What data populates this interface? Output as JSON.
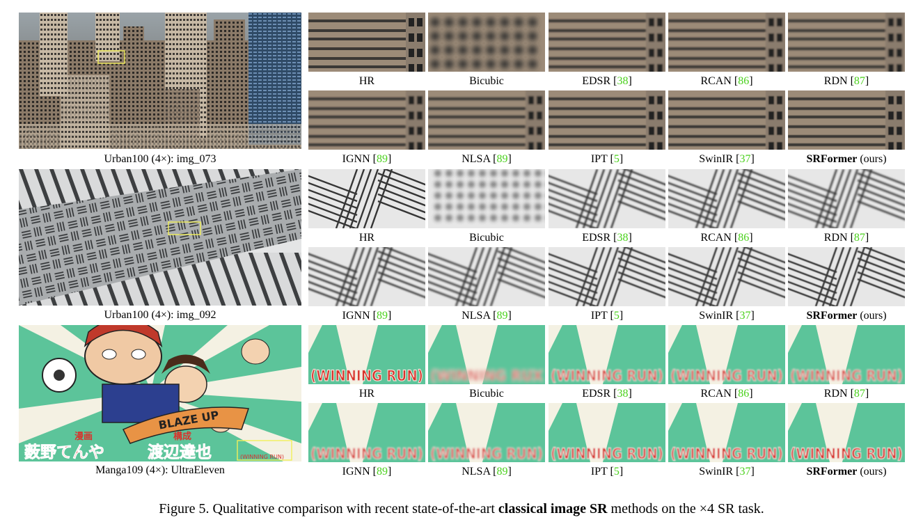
{
  "caption": {
    "prefix": "Figure 5. Qualitative comparison with recent state-of-the-art ",
    "bold": "classical image SR",
    "suffix": " methods on the ×4 SR task."
  },
  "groups": [
    {
      "source_label": "Urban100 (4×): img_073",
      "row1": [
        {
          "name": "HR",
          "ref": ""
        },
        {
          "name": "Bicubic",
          "ref": ""
        },
        {
          "name": "EDSR",
          "ref": "38"
        },
        {
          "name": "RCAN",
          "ref": "86"
        },
        {
          "name": "RDN",
          "ref": "87"
        }
      ],
      "row2": [
        {
          "name": "IGNN",
          "ref": "89"
        },
        {
          "name": "NLSA",
          "ref": "89"
        },
        {
          "name": "IPT",
          "ref": "5"
        },
        {
          "name": "SwinIR",
          "ref": "37"
        },
        {
          "name": "SRFormer",
          "ref": "",
          "suffix": "(ours)",
          "bold": true
        }
      ]
    },
    {
      "source_label": "Urban100 (4×): img_092",
      "row1": [
        {
          "name": "HR",
          "ref": ""
        },
        {
          "name": "Bicubic",
          "ref": ""
        },
        {
          "name": "EDSR",
          "ref": "38"
        },
        {
          "name": "RCAN",
          "ref": "86"
        },
        {
          "name": "RDN",
          "ref": "87"
        }
      ],
      "row2": [
        {
          "name": "IGNN",
          "ref": "89"
        },
        {
          "name": "NLSA",
          "ref": "89"
        },
        {
          "name": "IPT",
          "ref": "5"
        },
        {
          "name": "SwinIR",
          "ref": "37"
        },
        {
          "name": "SRFormer",
          "ref": "",
          "suffix": "(ours)",
          "bold": true
        }
      ]
    },
    {
      "source_label": "Manga109 (4×): UltraEleven",
      "manga_title_word": "BLAZE UP",
      "manga_credit_1": "漫画",
      "manga_credit_2": "構成",
      "manga_author_1": "薮野てんや",
      "manga_author_2": "渡辺達也",
      "manga_tag": "(WINNING RUN)",
      "crop_text": "(WINNING RUN)",
      "crop_text_bicubic": "(WINNING RUX",
      "row1": [
        {
          "name": "HR",
          "ref": ""
        },
        {
          "name": "Bicubic",
          "ref": ""
        },
        {
          "name": "EDSR",
          "ref": "38"
        },
        {
          "name": "RCAN",
          "ref": "86"
        },
        {
          "name": "RDN",
          "ref": "87"
        }
      ],
      "row2": [
        {
          "name": "IGNN",
          "ref": "89"
        },
        {
          "name": "NLSA",
          "ref": "89"
        },
        {
          "name": "IPT",
          "ref": "5"
        },
        {
          "name": "SwinIR",
          "ref": "37"
        },
        {
          "name": "SRFormer",
          "ref": "",
          "suffix": "(ours)",
          "bold": true
        }
      ]
    }
  ],
  "colors": {
    "reference_green": "#4ad11c",
    "highlight_box": "#f2f05a",
    "manga_green": "#5cc49a",
    "manga_red": "#d8322c"
  }
}
